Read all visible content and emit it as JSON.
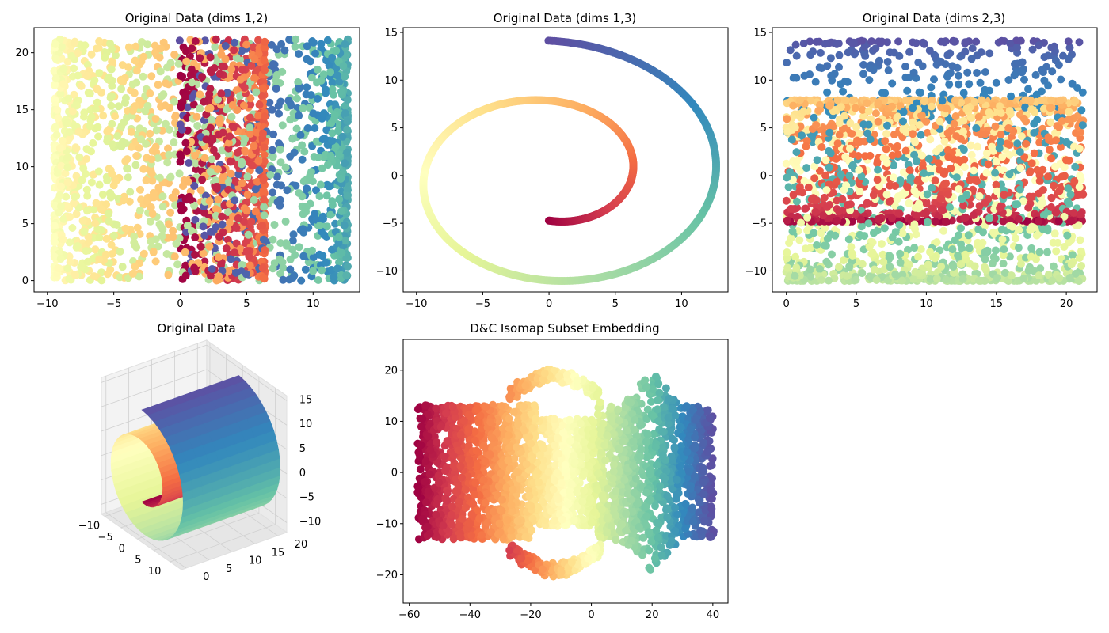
{
  "figure": {
    "background": "#ffffff"
  },
  "colormap": {
    "name": "Spectral",
    "stops": [
      "#9e0142",
      "#d53e4f",
      "#f46d43",
      "#fdae61",
      "#fee08b",
      "#ffffbf",
      "#e6f598",
      "#abdda4",
      "#66c2a5",
      "#3288bd",
      "#5e4fa2"
    ]
  },
  "chart_data": [
    {
      "id": "dims12",
      "type": "scatter",
      "title": "Original Data (dims 1,2)",
      "xlabel": "",
      "ylabel": "",
      "xlim": [
        -11,
        13.5
      ],
      "ylim": [
        -1,
        22.2
      ],
      "xticks": [
        -10,
        -5,
        0,
        5,
        10
      ],
      "yticks": [
        0,
        5,
        10,
        15,
        20
      ],
      "grid": false,
      "description_of_points": "Points of a Swiss-roll manifold projected onto x (dim 1) and height (dim 2); colour encodes position along the roll (Spectral colormap).",
      "x_range": [
        -9.6,
        12.6
      ],
      "y_range": [
        0,
        21.2
      ]
    },
    {
      "id": "dims13",
      "type": "scatter",
      "title": "Original Data (dims 1,3)",
      "xlabel": "",
      "ylabel": "",
      "xlim": [
        -11,
        13.5
      ],
      "ylim": [
        -12.2,
        15.5
      ],
      "xticks": [
        -10,
        -5,
        0,
        5,
        10
      ],
      "yticks": [
        -10,
        -5,
        0,
        5,
        10,
        15
      ],
      "grid": false,
      "spiral": {
        "t_start": 4.71,
        "t_end": 14.14,
        "center": [
          0,
          0
        ]
      },
      "x_range": [
        -9.6,
        12.6
      ],
      "y_range": [
        -11.0,
        14.1
      ]
    },
    {
      "id": "dims23",
      "type": "scatter",
      "title": "Original Data (dims 2,3)",
      "xlabel": "",
      "ylabel": "",
      "xlim": [
        -1,
        22.2
      ],
      "ylim": [
        -12.2,
        15.5
      ],
      "xticks": [
        0,
        5,
        10,
        15,
        20
      ],
      "yticks": [
        -10,
        -5,
        0,
        5,
        10,
        15
      ],
      "grid": false,
      "x_range": [
        0,
        21.2
      ],
      "y_range": [
        -11.0,
        14.1
      ]
    },
    {
      "id": "orig3d",
      "type": "surface3d",
      "title": "Original Data",
      "xlabel": "",
      "ylabel": "",
      "zlabel": "",
      "xticks": [
        -10,
        -5,
        0,
        5,
        10
      ],
      "yticks": [
        0,
        5,
        10,
        15,
        20
      ],
      "zticks": [
        -10,
        -5,
        0,
        5,
        10,
        15
      ],
      "grid": true
    },
    {
      "id": "embed",
      "type": "scatter",
      "title": "D&C Isomap Subset Embedding",
      "xlabel": "",
      "ylabel": "",
      "xlim": [
        -62,
        45
      ],
      "ylim": [
        -25.5,
        26
      ],
      "xticks": [
        -60,
        -40,
        -20,
        0,
        20,
        40
      ],
      "yticks": [
        -20,
        -10,
        0,
        10,
        20
      ],
      "grid": false,
      "x_range": [
        -57,
        40
      ],
      "y_range": [
        -23,
        24
      ]
    }
  ]
}
